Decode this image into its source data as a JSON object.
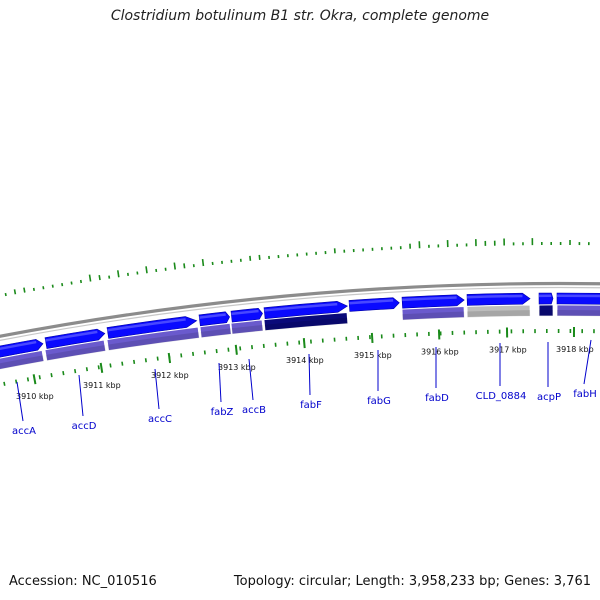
{
  "title": "Clostridium botulinum B1 str. Okra, complete genome",
  "footer": {
    "accession": "Accession: NC_010516",
    "summary": "Topology: circular; Length: 3,958,233 bp; Genes: 3,761"
  },
  "colors": {
    "gene_forward": "#0a0aff",
    "gene_feature": "#6a5acd",
    "gene_dark": "#0a0a7a",
    "pseudo_gray": "#bdbdbd",
    "backbone": "#8c8c8c",
    "gc_tick": "#1a8a1a",
    "label_blue": "#0000cc"
  },
  "scale": {
    "ticks": [
      {
        "label": "3910 kbp"
      },
      {
        "label": "3911 kbp"
      },
      {
        "label": "3912 kbp"
      },
      {
        "label": "3913 kbp"
      },
      {
        "label": "3914 kbp"
      },
      {
        "label": "3915 kbp"
      },
      {
        "label": "3916 kbp"
      },
      {
        "label": "3917 kbp"
      },
      {
        "label": "3918 kbp"
      }
    ]
  },
  "genes": [
    {
      "name": "accA"
    },
    {
      "name": "accD"
    },
    {
      "name": "accC"
    },
    {
      "name": "fabZ"
    },
    {
      "name": "accB"
    },
    {
      "name": "fabF"
    },
    {
      "name": "fabG"
    },
    {
      "name": "fabD"
    },
    {
      "name": "CLD_0884"
    },
    {
      "name": "acpP"
    },
    {
      "name": "fabH"
    }
  ]
}
